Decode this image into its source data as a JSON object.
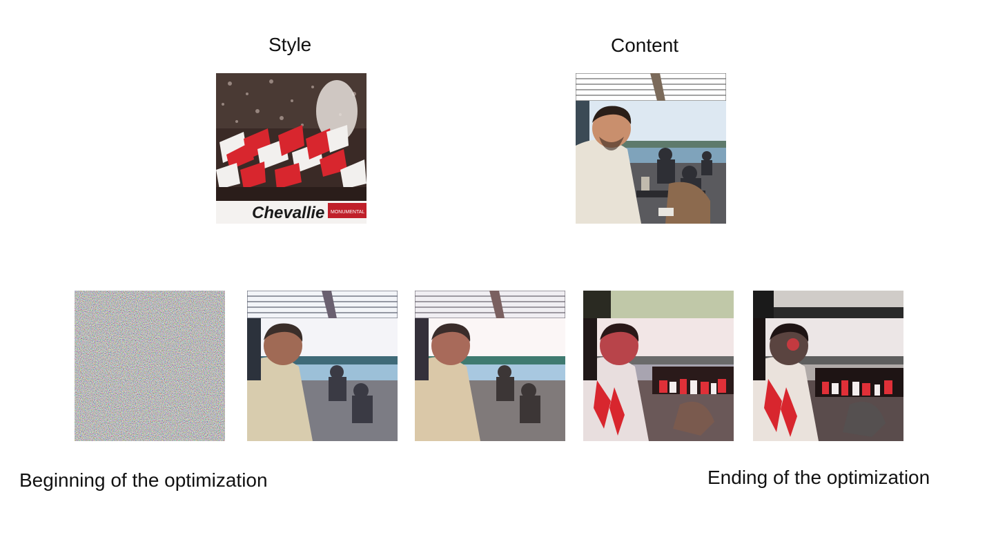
{
  "labels": {
    "style": "Style",
    "content": "Content",
    "beginning": "Beginning of the optimization",
    "ending": "Ending of the optimization"
  },
  "style_image": {
    "banner_text": "Chevallie",
    "badge_text": "MONUMENTAL"
  },
  "colors": {
    "flag_red": "#d8262e",
    "flag_white": "#f2f0ee",
    "sky": "#c9e0f2",
    "water": "#5f8fa8",
    "hoodie": "#e8e2d6",
    "skin": "#c98f6d"
  }
}
